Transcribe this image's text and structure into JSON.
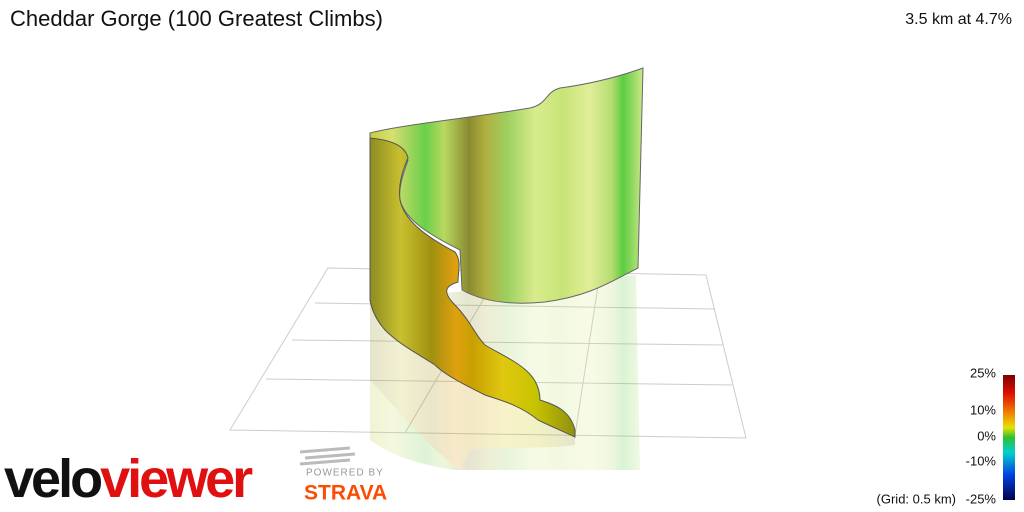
{
  "header": {
    "title": "Cheddar Gorge (100 Greatest Climbs)",
    "summary": "3.5 km at 4.7%"
  },
  "legend": {
    "labels": [
      "25%",
      "10%",
      "0%",
      "-10%",
      "-25%"
    ],
    "grid_note": "(Grid: 0.5 km)"
  },
  "branding": {
    "logo": [
      "velo",
      "viewer"
    ],
    "powered_by": "POWERED BY",
    "strava": "STRAVA"
  }
}
